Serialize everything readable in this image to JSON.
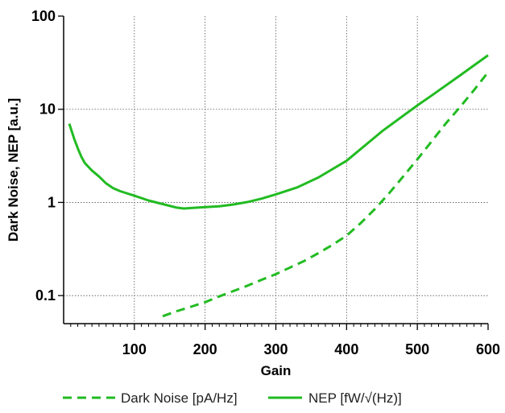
{
  "chart_data": {
    "type": "line",
    "title": "",
    "xlabel": "Gain",
    "ylabel": "Dark Noise, NEP [a.u.]",
    "xlim": [
      0,
      600
    ],
    "ylim": [
      0.05,
      100
    ],
    "yscale": "log",
    "grid": true,
    "legend_position": "bottom",
    "x_ticks": [
      100,
      200,
      300,
      400,
      500,
      600
    ],
    "x_tick_labels": [
      "100",
      "200",
      "300",
      "400",
      "500",
      "600"
    ],
    "x_minor_ticks": [
      10,
      20,
      30,
      40,
      50,
      60,
      70,
      80,
      90,
      110,
      120,
      130,
      140,
      150,
      160,
      170,
      180,
      190,
      210,
      220,
      230,
      240,
      250,
      260,
      270,
      280,
      290,
      310,
      320,
      330,
      340,
      350,
      360,
      370,
      380,
      390,
      410,
      420,
      430,
      440,
      450,
      460,
      470,
      480,
      490,
      510,
      520,
      530,
      540,
      550,
      560,
      570,
      580,
      590
    ],
    "y_ticks": [
      0.1,
      1,
      10,
      100
    ],
    "y_tick_labels": [
      "0.1",
      "1",
      "10",
      "100"
    ],
    "series": [
      {
        "name": "Dark Noise [pA/Hz]",
        "style": "dashed",
        "color": "#22bb22",
        "x": [
          140,
          160,
          180,
          200,
          220,
          240,
          260,
          280,
          300,
          320,
          340,
          360,
          380,
          400,
          420,
          440,
          460,
          480,
          500,
          520,
          540,
          560,
          580,
          600
        ],
        "y": [
          0.06,
          0.068,
          0.076,
          0.085,
          0.098,
          0.112,
          0.128,
          0.148,
          0.17,
          0.2,
          0.235,
          0.285,
          0.35,
          0.44,
          0.6,
          0.85,
          1.25,
          1.9,
          2.9,
          4.5,
          7,
          10.5,
          16,
          25
        ]
      },
      {
        "name": "NEP [fW/√(Hz)]",
        "style": "solid",
        "color": "#22bb22",
        "x": [
          8,
          15,
          20,
          25,
          30,
          40,
          50,
          60,
          70,
          80,
          100,
          120,
          140,
          160,
          170,
          180,
          200,
          220,
          240,
          260,
          280,
          300,
          330,
          360,
          400,
          450,
          500,
          520,
          560,
          600
        ],
        "y": [
          7,
          4.8,
          3.8,
          3.1,
          2.65,
          2.2,
          1.9,
          1.6,
          1.42,
          1.32,
          1.18,
          1.05,
          0.96,
          0.88,
          0.86,
          0.87,
          0.89,
          0.91,
          0.95,
          1.01,
          1.1,
          1.22,
          1.45,
          1.85,
          2.8,
          5.8,
          11,
          14,
          23,
          38
        ]
      }
    ]
  }
}
